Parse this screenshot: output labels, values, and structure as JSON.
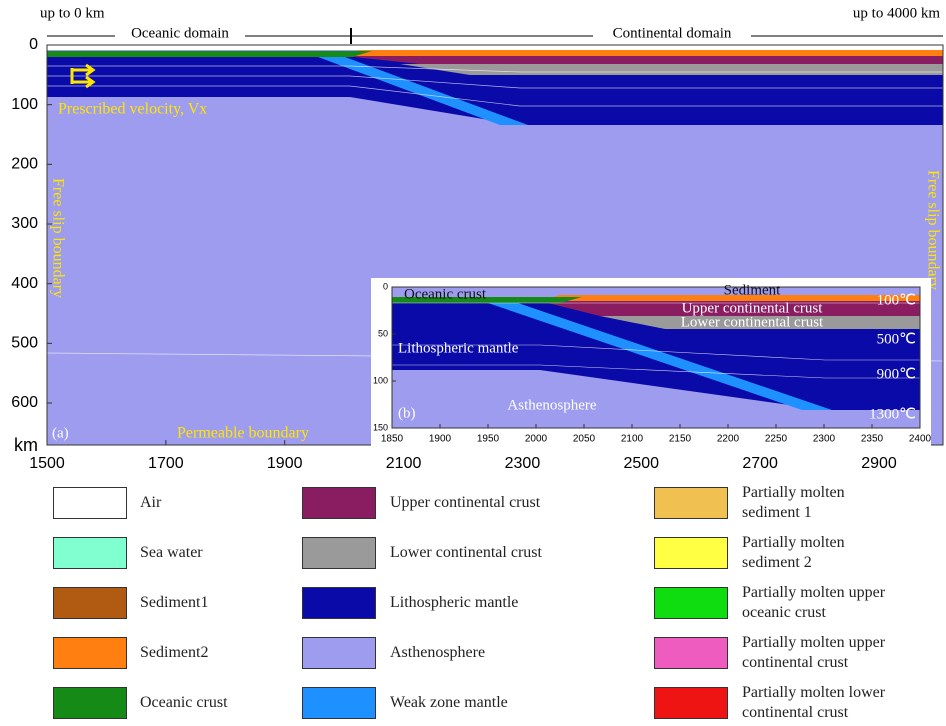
{
  "header": {
    "left": "up to 0 km",
    "right": "up to 4000 km",
    "oceanic": "Oceanic domain",
    "continental": "Continental domain"
  },
  "main": {
    "xticks": [
      1500,
      1700,
      1900,
      2100,
      2300,
      2500,
      2700,
      2900
    ],
    "yticks": [
      0,
      100,
      200,
      300,
      400,
      500,
      600
    ],
    "y_unit": "km",
    "panel": "(a)",
    "labels": {
      "velocity": "Prescribed velocity, Vx",
      "free_slip_left": "Free slip boundary",
      "free_slip_right": "Free slip boundary",
      "permeable": "Permeable boundary"
    }
  },
  "inset": {
    "panel": "(b)",
    "xticks": [
      1850,
      1900,
      1950,
      2000,
      2050,
      2100,
      2150,
      2200,
      2250,
      2300,
      2350,
      2400
    ],
    "yticks": [
      0,
      50,
      100,
      150
    ],
    "labels": {
      "oceanic_crust": "Oceanic crust",
      "sediment": "Sediment",
      "upper": "Upper continental crust",
      "lower": "Lower continental crust",
      "mantle": "Lithospheric mantle",
      "asthenosphere": "Asthenosphere"
    },
    "isotherms": [
      "100℃",
      "500℃",
      "900℃",
      "1300℃"
    ]
  },
  "legend": [
    {
      "label": "Air",
      "color": "#ffffff"
    },
    {
      "label": "Sea water",
      "color": "#80ffd0"
    },
    {
      "label": "Sediment1",
      "color": "#b05a12"
    },
    {
      "label": "Sediment2",
      "color": "#ff8010"
    },
    {
      "label": "Oceanic crust",
      "color": "#168a16"
    },
    {
      "label": "Upper continental crust",
      "color": "#8a1d62"
    },
    {
      "label": "Lower continental crust",
      "color": "#9a9a9a"
    },
    {
      "label": "Lithospheric mantle",
      "color": "#0a0aa8"
    },
    {
      "label": "Asthenosphere",
      "color": "#9d9cee"
    },
    {
      "label": "Weak zone mantle",
      "color": "#1e90ff"
    },
    {
      "label": "Partially molten\nsediment 1",
      "color": "#f0c050"
    },
    {
      "label": "Partially molten\nsediment 2",
      "color": "#ffff44"
    },
    {
      "label": "Partially molten upper\noceanic crust",
      "color": "#10dd10"
    },
    {
      "label": "Partially molten upper\ncontinental crust",
      "color": "#ee5cc0"
    },
    {
      "label": "Partially molten lower\ncontinental crust",
      "color": "#ee1414"
    }
  ]
}
